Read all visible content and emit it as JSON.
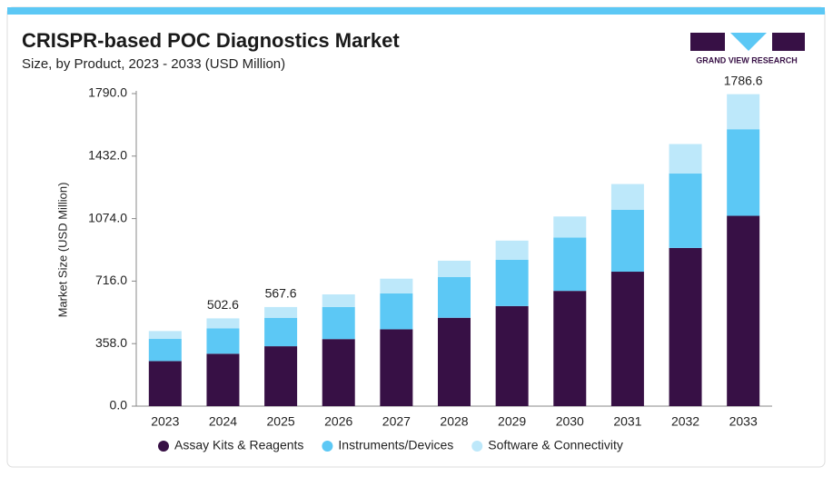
{
  "chart_data": {
    "type": "stacked_bar",
    "title": "CRISPR-based POC Diagnostics Market",
    "subtitle": "Size, by Product, 2023 - 2033 (USD Million)",
    "brand": "GRAND VIEW RESEARCH",
    "y_label": "Market Size (USD Million)",
    "categories": [
      "2023",
      "2024",
      "2025",
      "2026",
      "2027",
      "2028",
      "2029",
      "2030",
      "2031",
      "2032",
      "2033"
    ],
    "series": [
      {
        "name": "Assay Kits & Reagents",
        "color": "#371045",
        "values": [
          258,
          300,
          343,
          384,
          440,
          506,
          573,
          660,
          770,
          906,
          1090
        ]
      },
      {
        "name": "Instruments/Devices",
        "color": "#5cc8f5",
        "values": [
          127,
          146,
          163,
          184,
          206,
          233,
          265,
          306,
          355,
          426,
          496
        ]
      },
      {
        "name": "Software & Connectivity",
        "color": "#bde8fa",
        "values": [
          45,
          56.6,
          61.6,
          72,
          84,
          94,
          110,
          120,
          147,
          169,
          200.6
        ]
      }
    ],
    "annotations": [
      {
        "x": "2024",
        "value": 502.6
      },
      {
        "x": "2025",
        "value": 567.6
      },
      {
        "x": "2033",
        "value": 1786.6
      }
    ],
    "ylim": [
      0,
      1790
    ],
    "yticks": [
      {
        "value": 0,
        "label": "0.0"
      },
      {
        "value": 358,
        "label": "358.0"
      },
      {
        "value": 716,
        "label": "716.0"
      },
      {
        "value": 1074,
        "label": "1074.0"
      },
      {
        "value": 1432,
        "label": "1432.0"
      },
      {
        "value": 1790,
        "label": "1790.0"
      }
    ],
    "grid": false
  }
}
